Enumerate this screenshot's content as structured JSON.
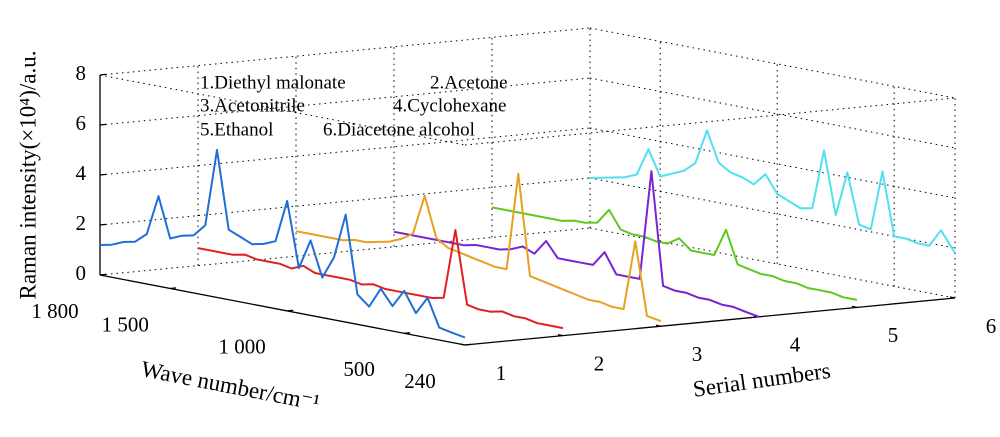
{
  "chart_data": {
    "type": "waterfall",
    "y_label": "Raman intensity(×10⁴)/a.u.",
    "x_label": "Wave number/cm⁻¹",
    "z_label": "Serial numbers",
    "ylim": [
      0,
      8
    ],
    "yticks": [
      0,
      2,
      4,
      6,
      8
    ],
    "xlim": [
      1800,
      240
    ],
    "xticks": [
      {
        "value": 1800,
        "label": "1 800"
      },
      {
        "value": 1500,
        "label": "1 500"
      },
      {
        "value": 1000,
        "label": "1 000"
      },
      500,
      240
    ],
    "zlim": [
      1,
      6
    ],
    "zticks": [
      1,
      2,
      3,
      4,
      5,
      6
    ],
    "grid": true,
    "x": [
      1800,
      1750,
      1700,
      1650,
      1600,
      1550,
      1500,
      1450,
      1400,
      1350,
      1300,
      1250,
      1200,
      1150,
      1100,
      1050,
      1000,
      950,
      900,
      850,
      800,
      750,
      700,
      650,
      600,
      550,
      500,
      450,
      400,
      350,
      300,
      240
    ],
    "series": [
      {
        "name": "1.Diethyl malonate",
        "serial": 1,
        "color": "#1f6fd6",
        "values": [
          1.2,
          1.3,
          1.5,
          1.6,
          2.0,
          3.6,
          2.0,
          2.2,
          2.3,
          2.8,
          5.9,
          2.8,
          2.6,
          2.4,
          2.5,
          2.7,
          4.4,
          1.8,
          3.0,
          1.6,
          2.5,
          4.3,
          1.2,
          0.8,
          1.6,
          1.0,
          1.7,
          0.9,
          1.6,
          0.5,
          0.4,
          0.3
        ]
      },
      {
        "name": "2.Acetone",
        "serial": 2,
        "color": "#e02020",
        "values": [
          0.7,
          0.7,
          0.7,
          0.7,
          0.8,
          0.7,
          0.7,
          0.7,
          0.6,
          0.8,
          0.6,
          0.6,
          0.6,
          0.6,
          0.5,
          0.6,
          0.5,
          0.5,
          0.5,
          0.5,
          0.5,
          0.6,
          3.4,
          0.5,
          0.4,
          0.4,
          0.5,
          0.4,
          0.4,
          0.3,
          0.3,
          0.3
        ]
      },
      {
        "name": "3.Acetonitrile",
        "serial": 3,
        "color": "#e8a020",
        "values": [
          1.0,
          1.0,
          1.0,
          1.0,
          1.0,
          1.1,
          1.1,
          1.2,
          1.3,
          1.5,
          1.8,
          3.4,
          1.8,
          1.5,
          1.4,
          1.3,
          1.2,
          1.1,
          1.1,
          5.0,
          1.0,
          0.9,
          0.8,
          0.7,
          0.6,
          0.5,
          0.5,
          0.4,
          0.4,
          3.2,
          0.3,
          0.2
        ]
      },
      {
        "name": "4.Cyclohexane",
        "serial": 4,
        "color": "#7a22d4",
        "values": [
          0.6,
          0.6,
          0.6,
          0.6,
          0.6,
          0.6,
          0.6,
          0.7,
          0.7,
          0.7,
          0.8,
          1.0,
          0.8,
          1.4,
          0.8,
          0.8,
          0.8,
          0.8,
          1.4,
          0.6,
          0.6,
          0.6,
          5.0,
          0.5,
          0.4,
          0.4,
          0.3,
          0.3,
          0.2,
          0.2,
          0.1,
          0.0
        ]
      },
      {
        "name": "5.Ethanol",
        "serial": 5,
        "color": "#5ec820",
        "values": [
          1.2,
          1.2,
          1.2,
          1.2,
          1.2,
          1.2,
          1.2,
          1.3,
          1.3,
          1.4,
          2.0,
          1.3,
          1.2,
          1.2,
          1.1,
          1.1,
          1.4,
          1.0,
          1.0,
          1.0,
          2.1,
          0.8,
          0.7,
          0.6,
          0.6,
          0.5,
          0.5,
          0.4,
          0.4,
          0.4,
          0.3,
          0.3
        ]
      },
      {
        "name": "6.Diacetone alcohol",
        "serial": 6,
        "color": "#50e0f0",
        "values": [
          2.0,
          2.1,
          2.2,
          2.3,
          2.5,
          3.6,
          2.6,
          2.8,
          3.0,
          3.4,
          4.8,
          3.6,
          3.3,
          3.2,
          3.0,
          3.5,
          2.8,
          2.6,
          2.4,
          2.5,
          4.9,
          2.4,
          4.2,
          2.2,
          2.1,
          4.5,
          2.0,
          2.0,
          1.9,
          1.9,
          2.6,
          1.8
        ]
      }
    ]
  }
}
